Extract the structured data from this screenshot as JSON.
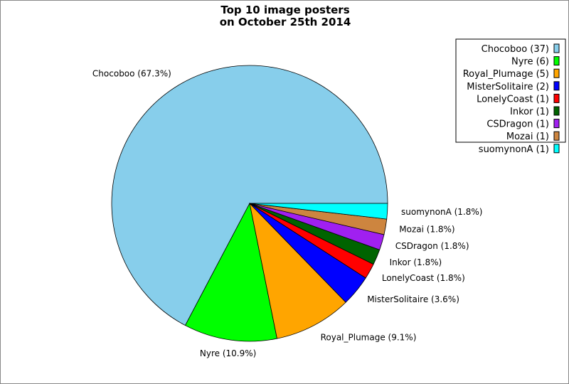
{
  "chart_data": {
    "type": "pie",
    "title": "Top 10 image posters\non October 25th 2014",
    "title_lines": [
      "Top 10 image posters",
      "on October 25th 2014"
    ],
    "start_angle_deg": 0,
    "direction": "counterclockwise",
    "legend_placement": "top-right",
    "slices": [
      {
        "name": "Chocoboo",
        "value": 37,
        "percent_label": "Chocoboo (67.3%)",
        "legend_label": "Chocoboo (37)",
        "color": "#87ceeb"
      },
      {
        "name": "Nyre",
        "value": 6,
        "percent_label": "Nyre (10.9%)",
        "legend_label": "Nyre (6)",
        "color": "#00ff00"
      },
      {
        "name": "Royal_Plumage",
        "value": 5,
        "percent_label": "Royal_Plumage (9.1%)",
        "legend_label": "Royal_Plumage (5)",
        "color": "#ffa500"
      },
      {
        "name": "MisterSolitaire",
        "value": 2,
        "percent_label": "MisterSolitaire (3.6%)",
        "legend_label": "MisterSolitaire (2)",
        "color": "#0000ff"
      },
      {
        "name": "LonelyCoast",
        "value": 1,
        "percent_label": "LonelyCoast (1.8%)",
        "legend_label": "LonelyCoast (1)",
        "color": "#ff0000"
      },
      {
        "name": "Inkor",
        "value": 1,
        "percent_label": "Inkor (1.8%)",
        "legend_label": "Inkor (1)",
        "color": "#006400"
      },
      {
        "name": "CSDragon",
        "value": 1,
        "percent_label": "CSDragon (1.8%)",
        "legend_label": "CSDragon (1)",
        "color": "#a020f0"
      },
      {
        "name": "Mozai",
        "value": 1,
        "percent_label": "Mozai (1.8%)",
        "legend_label": "Mozai (1)",
        "color": "#cd853f"
      },
      {
        "name": "suomynonA",
        "value": 1,
        "percent_label": "suomynonA (1.8%)",
        "legend_label": "suomynonA (1)",
        "color": "#00ffff"
      }
    ]
  }
}
